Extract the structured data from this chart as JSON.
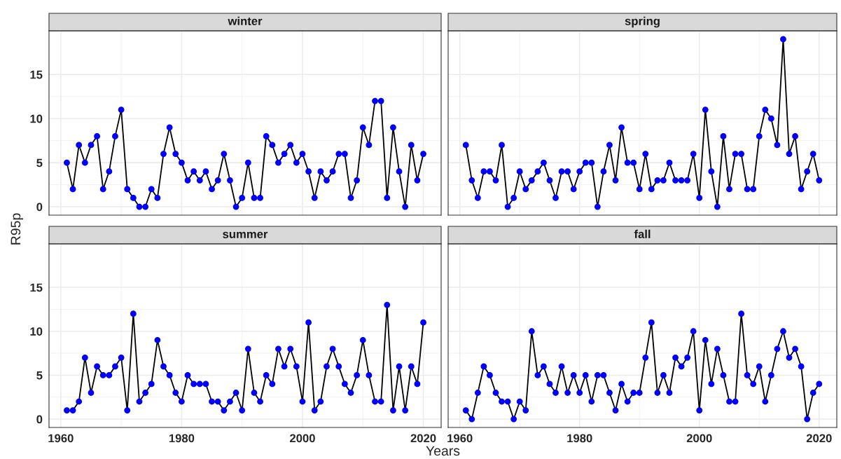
{
  "chart_data": [
    {
      "type": "line",
      "title": "winter",
      "ylabel": "R95p",
      "tick_labels": "y",
      "grid": true,
      "marker": "circle",
      "line_style": "solid",
      "xlim": [
        1958.05,
        2022.95
      ],
      "ylim": [
        -0.95,
        19.95
      ],
      "xticks": [
        1960,
        1980,
        2000,
        2020
      ],
      "yticks": [
        0,
        5,
        10,
        15
      ],
      "x": [
        1961,
        1962,
        1963,
        1964,
        1965,
        1966,
        1967,
        1968,
        1969,
        1970,
        1971,
        1972,
        1973,
        1974,
        1975,
        1976,
        1977,
        1978,
        1979,
        1980,
        1981,
        1982,
        1983,
        1984,
        1985,
        1986,
        1987,
        1988,
        1989,
        1990,
        1991,
        1992,
        1993,
        1994,
        1995,
        1996,
        1997,
        1998,
        1999,
        2000,
        2001,
        2002,
        2003,
        2004,
        2005,
        2006,
        2007,
        2008,
        2009,
        2010,
        2011,
        2012,
        2013,
        2014,
        2015,
        2016,
        2017,
        2018,
        2019,
        2020
      ],
      "series": [
        {
          "color": "#0000ff",
          "values": [
            5,
            2,
            7,
            5,
            7,
            8,
            2,
            4,
            8,
            11,
            2,
            1,
            0,
            0,
            2,
            1,
            6,
            9,
            6,
            5,
            3,
            4,
            3,
            4,
            2,
            3,
            6,
            3,
            0,
            1,
            5,
            1,
            1,
            8,
            7,
            5,
            6,
            7,
            5,
            6,
            4,
            1,
            4,
            3,
            4,
            6,
            6,
            1,
            3,
            9,
            7,
            12,
            12,
            1,
            9,
            4,
            0,
            7,
            3,
            6
          ]
        }
      ]
    },
    {
      "type": "line",
      "title": "spring",
      "tick_labels": false,
      "grid": true,
      "marker": "circle",
      "line_style": "solid",
      "xlim": [
        1958.05,
        2022.95
      ],
      "ylim": [
        -0.95,
        19.95
      ],
      "xticks": [
        1960,
        1980,
        2000,
        2020
      ],
      "yticks": [
        0,
        5,
        10,
        15
      ],
      "x": [
        1961,
        1962,
        1963,
        1964,
        1965,
        1966,
        1967,
        1968,
        1969,
        1970,
        1971,
        1972,
        1973,
        1974,
        1975,
        1976,
        1977,
        1978,
        1979,
        1980,
        1981,
        1982,
        1983,
        1984,
        1985,
        1986,
        1987,
        1988,
        1989,
        1990,
        1991,
        1992,
        1993,
        1994,
        1995,
        1996,
        1997,
        1998,
        1999,
        2000,
        2001,
        2002,
        2003,
        2004,
        2005,
        2006,
        2007,
        2008,
        2009,
        2010,
        2011,
        2012,
        2013,
        2014,
        2015,
        2016,
        2017,
        2018,
        2019,
        2020
      ],
      "series": [
        {
          "color": "#0000ff",
          "values": [
            7,
            3,
            1,
            4,
            4,
            3,
            7,
            0,
            1,
            4,
            2,
            3,
            4,
            5,
            3,
            1,
            4,
            4,
            2,
            4,
            5,
            5,
            0,
            4,
            7,
            3,
            9,
            5,
            5,
            2,
            6,
            2,
            3,
            3,
            5,
            3,
            3,
            3,
            6,
            1,
            11,
            4,
            0,
            8,
            2,
            6,
            6,
            2,
            2,
            8,
            11,
            10,
            7,
            19,
            6,
            8,
            2,
            4,
            6,
            3
          ]
        }
      ]
    },
    {
      "type": "line",
      "title": "summer",
      "xlabel": "Years",
      "grid": true,
      "marker": "circle",
      "line_style": "solid",
      "xlim": [
        1958.05,
        2022.95
      ],
      "ylim": [
        -0.95,
        19.95
      ],
      "xticks": [
        1960,
        1980,
        2000,
        2020
      ],
      "yticks": [
        0,
        5,
        10,
        15
      ],
      "x": [
        1961,
        1962,
        1963,
        1964,
        1965,
        1966,
        1967,
        1968,
        1969,
        1970,
        1971,
        1972,
        1973,
        1974,
        1975,
        1976,
        1977,
        1978,
        1979,
        1980,
        1981,
        1982,
        1983,
        1984,
        1985,
        1986,
        1987,
        1988,
        1989,
        1990,
        1991,
        1992,
        1993,
        1994,
        1995,
        1996,
        1997,
        1998,
        1999,
        2000,
        2001,
        2002,
        2003,
        2004,
        2005,
        2006,
        2007,
        2008,
        2009,
        2010,
        2011,
        2012,
        2013,
        2014,
        2015,
        2016,
        2017,
        2018,
        2019,
        2020
      ],
      "series": [
        {
          "color": "#0000ff",
          "values": [
            1,
            1,
            2,
            7,
            3,
            6,
            5,
            5,
            6,
            7,
            1,
            12,
            2,
            3,
            4,
            9,
            6,
            5,
            3,
            2,
            5,
            4,
            4,
            4,
            2,
            2,
            1,
            2,
            3,
            1,
            8,
            3,
            2,
            5,
            4,
            8,
            6,
            8,
            6,
            2,
            11,
            1,
            2,
            6,
            8,
            6,
            4,
            3,
            5,
            9,
            5,
            2,
            2,
            13,
            1,
            6,
            1,
            6,
            4,
            11
          ]
        }
      ]
    },
    {
      "type": "line",
      "title": "fall",
      "tick_labels": "x",
      "grid": true,
      "marker": "circle",
      "line_style": "solid",
      "xlim": [
        1958.05,
        2022.95
      ],
      "ylim": [
        -0.95,
        19.95
      ],
      "xticks": [
        1960,
        1980,
        2000,
        2020
      ],
      "yticks": [
        0,
        5,
        10,
        15
      ],
      "x": [
        1961,
        1962,
        1963,
        1964,
        1965,
        1966,
        1967,
        1968,
        1969,
        1970,
        1971,
        1972,
        1973,
        1974,
        1975,
        1976,
        1977,
        1978,
        1979,
        1980,
        1981,
        1982,
        1983,
        1984,
        1985,
        1986,
        1987,
        1988,
        1989,
        1990,
        1991,
        1992,
        1993,
        1994,
        1995,
        1996,
        1997,
        1998,
        1999,
        2000,
        2001,
        2002,
        2003,
        2004,
        2005,
        2006,
        2007,
        2008,
        2009,
        2010,
        2011,
        2012,
        2013,
        2014,
        2015,
        2016,
        2017,
        2018,
        2019,
        2020
      ],
      "series": [
        {
          "color": "#0000ff",
          "values": [
            1,
            0,
            3,
            6,
            5,
            3,
            2,
            2,
            0,
            2,
            1,
            10,
            5,
            6,
            4,
            3,
            6,
            3,
            5,
            3,
            5,
            2,
            5,
            5,
            3,
            1,
            4,
            2,
            3,
            3,
            7,
            11,
            3,
            5,
            3,
            7,
            6,
            7,
            10,
            1,
            9,
            4,
            8,
            5,
            2,
            2,
            12,
            5,
            4,
            6,
            2,
            5,
            8,
            10,
            7,
            8,
            6,
            0,
            3,
            4
          ]
        }
      ]
    }
  ]
}
